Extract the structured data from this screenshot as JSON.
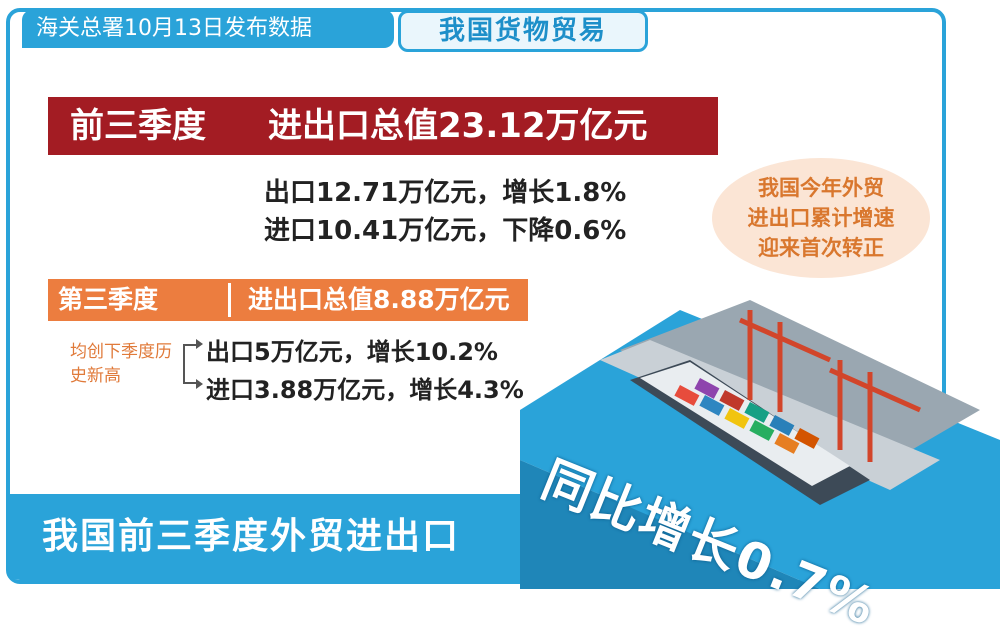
{
  "header": {
    "source": "海关总署10月13日发布数据",
    "topic": "我国货物贸易"
  },
  "q1_3": {
    "label": "前三季度",
    "total": "进出口总值23.12万亿元",
    "export_line": "出口12.71万亿元，增长1.8%",
    "import_line": "进口10.41万亿元，下降0.6%"
  },
  "bubble": {
    "lines": [
      "我国今年外贸",
      "进出口累计增速",
      "迎来首次转正"
    ]
  },
  "q3": {
    "label": "第三季度",
    "total": "进出口总值8.88万亿元",
    "record_note": "均创下季度历史新高",
    "export_line": "出口5万亿元，增长10.2%",
    "import_line": "进口3.88万亿元，增长4.3%"
  },
  "footer": {
    "title": "我国前三季度外贸进出口",
    "growth": "同比增长0.7%"
  },
  "colors": {
    "accent_blue": "#2aa3d9",
    "red": "#a31c23",
    "orange": "#ec7d3f"
  },
  "icons": [
    "container-port-illustration"
  ]
}
